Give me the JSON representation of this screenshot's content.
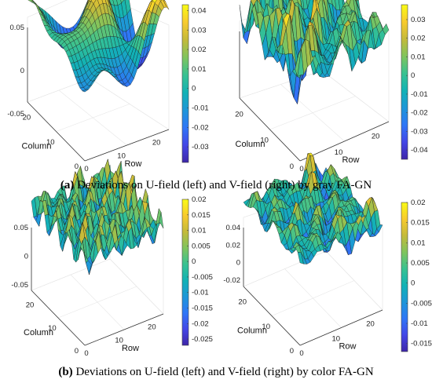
{
  "captions": [
    {
      "tag": "(a)",
      "text": " Deviations on U-field (left) and V-field (right) by gray FA-GN"
    },
    {
      "tag": "(b)",
      "text": " Deviations on U-field (left) and V-field (right) by color FA-GN"
    }
  ],
  "colormap": [
    "#3e26a8",
    "#4346e7",
    "#2f76f7",
    "#1e97d8",
    "#12b2b5",
    "#39c291",
    "#80c45d",
    "#c4ba3a",
    "#f8cb2e",
    "#f9fb15"
  ],
  "chart_data": [
    {
      "type": "surface",
      "panel": "top-left",
      "xlabel": "Row",
      "ylabel": "Column",
      "xticks": [
        "0",
        "10",
        "20"
      ],
      "yticks": [
        "0",
        "10",
        "20"
      ],
      "zticks": [
        "-0.05",
        "0",
        "0.05"
      ],
      "zlim": [
        -0.05,
        0.05
      ],
      "colorbar": {
        "ticks": [
          "0.04",
          "0.03",
          "0.02",
          "0.01",
          "0",
          "-0.01",
          "-0.02",
          "-0.03"
        ],
        "range": [
          -0.038,
          0.043
        ]
      },
      "grid": true
    },
    {
      "type": "surface",
      "panel": "top-right",
      "xlabel": "Row",
      "ylabel": "Column",
      "xticks": [
        "0",
        "10",
        "20"
      ],
      "yticks": [
        "0",
        "10",
        "20"
      ],
      "zticks": [],
      "zlim": [
        -0.04,
        0.035
      ],
      "colorbar": {
        "ticks": [
          "0.03",
          "0.02",
          "0.01",
          "0",
          "-0.01",
          "-0.02",
          "-0.03",
          "-0.04"
        ],
        "range": [
          -0.045,
          0.038
        ]
      },
      "grid": true
    },
    {
      "type": "surface",
      "panel": "bottom-left",
      "xlabel": "Row",
      "ylabel": "Column",
      "xticks": [
        "0",
        "10",
        "20"
      ],
      "yticks": [
        "0",
        "10",
        "20"
      ],
      "zticks": [
        "-0.05",
        "0",
        "0.05"
      ],
      "zlim": [
        -0.05,
        0.05
      ],
      "colorbar": {
        "ticks": [
          "0.02",
          "0.015",
          "0.01",
          "0.005",
          "0",
          "-0.005",
          "-0.01",
          "-0.015",
          "-0.02",
          "-0.025"
        ],
        "range": [
          -0.027,
          0.02
        ]
      },
      "grid": true
    },
    {
      "type": "surface",
      "panel": "bottom-right",
      "xlabel": "Row",
      "ylabel": "Column",
      "xticks": [
        "0",
        "10",
        "20"
      ],
      "yticks": [
        "0",
        "10",
        "20"
      ],
      "zticks": [
        "-0.02",
        "0",
        "0.02",
        "0.04"
      ],
      "zlim": [
        -0.02,
        0.04
      ],
      "colorbar": {
        "ticks": [
          "0.02",
          "0.015",
          "0.01",
          "0.005",
          "0",
          "-0.005",
          "-0.01",
          "-0.015"
        ],
        "range": [
          -0.017,
          0.02
        ]
      },
      "grid": true
    }
  ]
}
